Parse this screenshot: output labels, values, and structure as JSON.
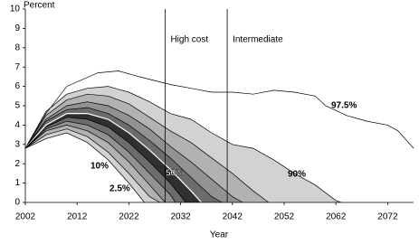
{
  "chart_data": {
    "type": "fan",
    "ylabel": "Percent",
    "xlabel": "Year",
    "xlim": [
      2002,
      2077
    ],
    "xticks": [
      2002,
      2012,
      2022,
      2032,
      2042,
      2052,
      2062,
      2072
    ],
    "ylim": [
      0,
      10
    ],
    "yticks": [
      0,
      1,
      2,
      3,
      4,
      5,
      6,
      7,
      8,
      9,
      10
    ],
    "vlines": [
      {
        "x": 2029,
        "label": "High cost"
      },
      {
        "x": 2041,
        "label": "Intermediate"
      }
    ],
    "series": [
      {
        "name": "97.5%",
        "stroke": "#000000",
        "x": [
          2002,
          2006,
          2010,
          2016,
          2020,
          2024,
          2030,
          2034,
          2038,
          2042,
          2046,
          2050,
          2054,
          2058,
          2060,
          2064,
          2068,
          2072,
          2074,
          2077
        ],
        "values": [
          2.8,
          4.6,
          6.0,
          6.7,
          6.8,
          6.5,
          6.1,
          5.9,
          5.7,
          5.7,
          5.6,
          5.8,
          5.7,
          5.5,
          5.0,
          4.5,
          4.2,
          4.0,
          3.7,
          2.8
        ]
      },
      {
        "name": "90%",
        "color": "#d2d2d2",
        "stroke": "#000000",
        "x": [
          2002,
          2006,
          2010,
          2014,
          2018,
          2022,
          2026,
          2030,
          2034,
          2038,
          2042,
          2046,
          2050,
          2054,
          2058,
          2062,
          2063
        ],
        "values": [
          2.8,
          4.7,
          5.6,
          5.9,
          6.0,
          5.7,
          5.2,
          4.6,
          4.3,
          3.6,
          3.0,
          2.8,
          2.2,
          1.5,
          0.9,
          0.1,
          0
        ]
      },
      {
        "color": "#b2b2b2",
        "stroke": "#000000",
        "x": [
          2002,
          2006,
          2010,
          2014,
          2018,
          2022,
          2026,
          2030,
          2034,
          2038,
          2042,
          2046,
          2049
        ],
        "values": [
          2.8,
          4.5,
          5.3,
          5.6,
          5.5,
          5.1,
          4.4,
          3.7,
          3.1,
          2.3,
          1.5,
          0.6,
          0
        ]
      },
      {
        "color": "#929292",
        "stroke": "#000000",
        "x": [
          2002,
          2006,
          2010,
          2014,
          2018,
          2022,
          2026,
          2030,
          2034,
          2038,
          2042,
          2044
        ],
        "values": [
          2.8,
          4.3,
          5.0,
          5.2,
          5.0,
          4.5,
          3.8,
          2.9,
          2.1,
          1.2,
          0.3,
          0
        ]
      },
      {
        "color": "#6c6c6c",
        "stroke": "#000000",
        "x": [
          2002,
          2006,
          2010,
          2014,
          2018,
          2022,
          2026,
          2030,
          2034,
          2038,
          2040
        ],
        "values": [
          2.8,
          4.2,
          4.8,
          4.9,
          4.6,
          4.0,
          3.2,
          2.3,
          1.3,
          0.3,
          0
        ]
      },
      {
        "name": "50%",
        "color": "#303030",
        "stroke": "#ffffff",
        "x": [
          2002,
          2006,
          2010,
          2014,
          2018,
          2022,
          2026,
          2030,
          2034,
          2036
        ],
        "values": [
          2.8,
          4.0,
          4.6,
          4.6,
          4.3,
          3.6,
          2.7,
          1.7,
          0.6,
          0
        ]
      },
      {
        "color": "#6c6c6c",
        "stroke": "#000000",
        "x": [
          2002,
          2006,
          2010,
          2014,
          2018,
          2022,
          2026,
          2030,
          2033
        ],
        "values": [
          2.8,
          3.9,
          4.4,
          4.3,
          3.9,
          3.1,
          2.1,
          1.0,
          0
        ]
      },
      {
        "color": "#929292",
        "stroke": "#000000",
        "x": [
          2002,
          2006,
          2010,
          2014,
          2018,
          2022,
          2026,
          2030,
          2031
        ],
        "values": [
          2.8,
          3.8,
          4.2,
          4.0,
          3.5,
          2.6,
          1.5,
          0.4,
          0
        ]
      },
      {
        "color": "#b2b2b2",
        "stroke": "#000000",
        "x": [
          2002,
          2006,
          2010,
          2014,
          2018,
          2022,
          2026,
          2029
        ],
        "values": [
          2.8,
          3.7,
          4.0,
          3.7,
          3.1,
          2.1,
          0.9,
          0
        ]
      },
      {
        "name": "10%",
        "color": "#d2d2d2",
        "stroke": "#000000",
        "x": [
          2002,
          2006,
          2010,
          2014,
          2018,
          2022,
          2026,
          2028
        ],
        "values": [
          2.8,
          3.5,
          3.8,
          3.4,
          2.6,
          1.5,
          0.3,
          0
        ]
      },
      {
        "name": "2.5%",
        "color": "#ffffff",
        "stroke": "#000000",
        "x": [
          2002,
          2006,
          2010,
          2014,
          2018,
          2022,
          2025
        ],
        "values": [
          2.8,
          3.3,
          3.6,
          3.1,
          2.2,
          1.0,
          0
        ]
      }
    ]
  }
}
